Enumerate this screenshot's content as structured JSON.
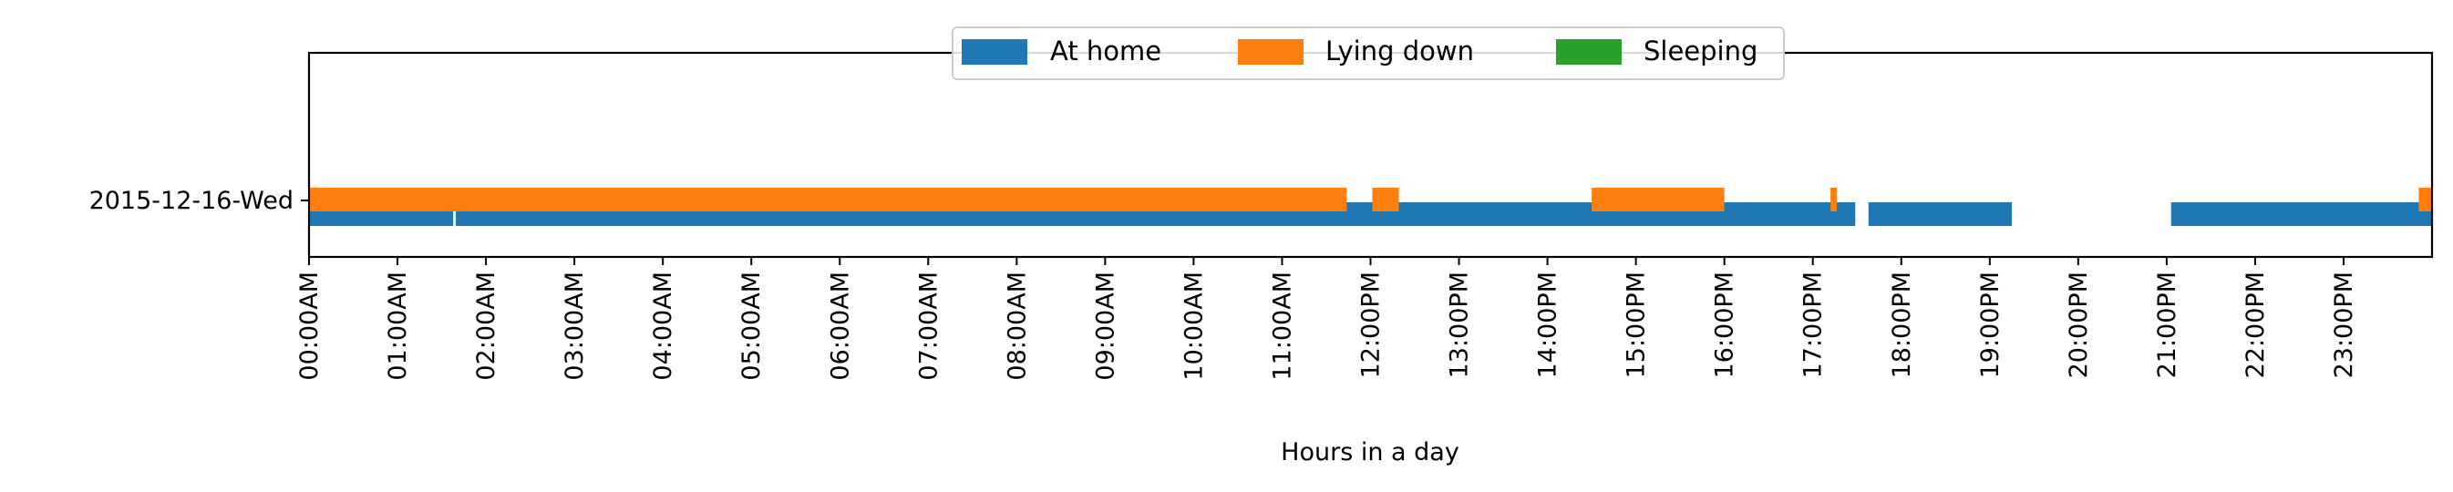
{
  "chart_data": {
    "type": "timeline",
    "xlabel": "Hours in a day",
    "xlim": [
      0,
      24
    ],
    "x_tick_labels": [
      "00:00AM",
      "01:00AM",
      "02:00AM",
      "03:00AM",
      "04:00AM",
      "05:00AM",
      "06:00AM",
      "07:00AM",
      "08:00AM",
      "09:00AM",
      "10:00AM",
      "11:00AM",
      "12:00PM",
      "13:00PM",
      "14:00PM",
      "15:00PM",
      "16:00PM",
      "17:00PM",
      "18:00PM",
      "19:00PM",
      "20:00PM",
      "21:00PM",
      "22:00PM",
      "23:00PM"
    ],
    "rows": [
      "2015-12-16-Wed"
    ],
    "legend": {
      "placement": "top-center"
    },
    "series": [
      {
        "name": "At home",
        "color": "#1f77b4",
        "intervals": [
          [
            0.0,
            1.63
          ],
          [
            1.66,
            17.48
          ],
          [
            17.63,
            19.25
          ],
          [
            21.05,
            24.0
          ]
        ]
      },
      {
        "name": "Lying down",
        "color": "#ff7f0e",
        "intervals": [
          [
            0.0,
            11.73
          ],
          [
            12.02,
            12.32
          ],
          [
            14.5,
            16.0
          ],
          [
            17.2,
            17.27
          ],
          [
            23.85,
            24.0
          ]
        ]
      },
      {
        "name": "Sleeping",
        "color": "#2ca02c",
        "intervals": []
      }
    ]
  }
}
